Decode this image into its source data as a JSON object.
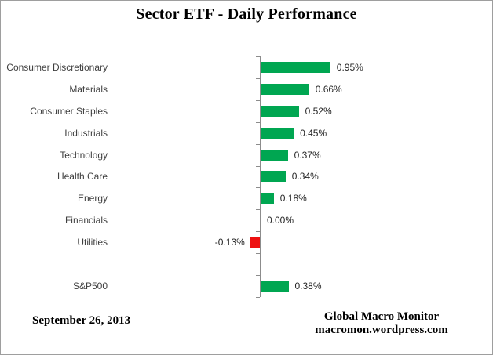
{
  "title": "Sector ETF - Daily Performance",
  "footer": {
    "date": "September 26, 2013",
    "source_line1": "Global Macro Monitor",
    "source_line2": "macromon.wordpress.com"
  },
  "colors": {
    "positive_bar": "#00a651",
    "negative_bar": "#ee1111",
    "axis": "#8c8c8c",
    "category_text": "#3f3f3f",
    "value_text": "#262626",
    "border": "#9e9e9e"
  },
  "chart_data": {
    "type": "bar",
    "orientation": "horizontal",
    "title": "Sector ETF - Daily Performance",
    "unit": "%",
    "categories": [
      "Consumer Discretionary",
      "Materials",
      "Consumer Staples",
      "Industrials",
      "Technology",
      "Health Care",
      "Energy",
      "Financials",
      "Utilities",
      "",
      "S&P500"
    ],
    "values": [
      0.95,
      0.66,
      0.52,
      0.45,
      0.37,
      0.34,
      0.18,
      0.0,
      -0.13,
      null,
      0.38
    ],
    "value_labels": [
      "0.95%",
      "0.66%",
      "0.52%",
      "0.45%",
      "0.37%",
      "0.34%",
      "0.18%",
      "0.00%",
      "-0.13%",
      "",
      "0.38%"
    ],
    "layout_hints": {
      "zero_baseline_vertical_line": true,
      "ticks_at_category_boundaries": true,
      "value_labels_outside_bar_end": true,
      "gridlines": false,
      "legend": "none"
    }
  }
}
